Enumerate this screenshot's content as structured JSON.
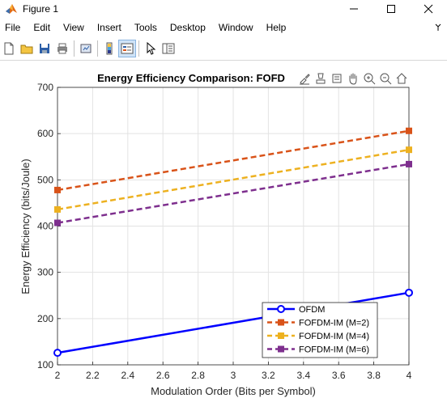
{
  "window": {
    "title": "Figure 1"
  },
  "menu": {
    "items": [
      "File",
      "Edit",
      "View",
      "Insert",
      "Tools",
      "Desktop",
      "Window",
      "Help"
    ]
  },
  "toolbar": {
    "buttons": [
      "new-figure-icon",
      "open-file-icon",
      "save-icon",
      "print-icon",
      "link-figure-icon",
      "colorbar-icon",
      "legend-icon",
      "edit-plot-arrow-icon",
      "property-inspector-icon"
    ]
  },
  "axes_toolbar": {
    "buttons": [
      "brush-icon",
      "data-tips-icon",
      "rotate-icon",
      "pan-icon",
      "zoom-in-icon",
      "zoom-out-icon",
      "home-icon"
    ]
  },
  "chart_data": {
    "type": "line",
    "title": "Energy Efficiency Comparison: FOFD",
    "xlabel": "Modulation Order (Bits per Symbol)",
    "ylabel": "Energy Efficiency (bits/Joule)",
    "xlim": [
      2,
      4
    ],
    "ylim": [
      100,
      700
    ],
    "xticks": [
      "2",
      "2.2",
      "2.4",
      "2.6",
      "2.8",
      "3",
      "3.2",
      "3.4",
      "3.6",
      "3.8",
      "4"
    ],
    "yticks": [
      "100",
      "200",
      "300",
      "400",
      "500",
      "600",
      "700"
    ],
    "grid": true,
    "legend_position": "bottom-right",
    "x": [
      2,
      4
    ],
    "series": [
      {
        "name": "OFDM",
        "values": [
          126,
          256
        ],
        "color": "#0000ff",
        "style": "solid",
        "marker": "circle"
      },
      {
        "name": "FOFDM-IM (M=2)",
        "values": [
          478,
          606
        ],
        "color": "#d95319",
        "style": "dashed",
        "marker": "square"
      },
      {
        "name": "FOFDM-IM (M=4)",
        "values": [
          436,
          565
        ],
        "color": "#edb120",
        "style": "dashed",
        "marker": "square"
      },
      {
        "name": "FOFDM-IM (M=6)",
        "values": [
          407,
          534
        ],
        "color": "#7e2f8e",
        "style": "dashed",
        "marker": "square"
      }
    ]
  }
}
